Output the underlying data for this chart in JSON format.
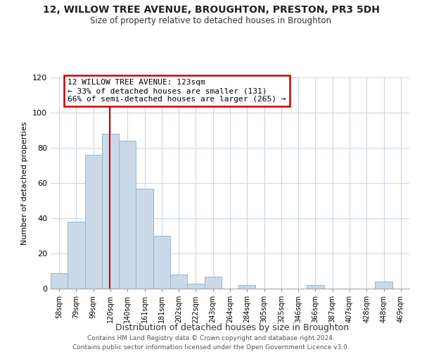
{
  "title": "12, WILLOW TREE AVENUE, BROUGHTON, PRESTON, PR3 5DH",
  "subtitle": "Size of property relative to detached houses in Broughton",
  "xlabel": "Distribution of detached houses by size in Broughton",
  "ylabel": "Number of detached properties",
  "bar_labels": [
    "58sqm",
    "79sqm",
    "99sqm",
    "120sqm",
    "140sqm",
    "161sqm",
    "181sqm",
    "202sqm",
    "222sqm",
    "243sqm",
    "264sqm",
    "284sqm",
    "305sqm",
    "325sqm",
    "346sqm",
    "366sqm",
    "387sqm",
    "407sqm",
    "428sqm",
    "448sqm",
    "469sqm"
  ],
  "bar_values": [
    9,
    38,
    76,
    88,
    84,
    57,
    30,
    8,
    3,
    7,
    0,
    2,
    0,
    0,
    0,
    2,
    0,
    0,
    0,
    4,
    0
  ],
  "bar_color": "#cad9e8",
  "bar_edge_color": "#9ab8d0",
  "vline_color": "#cc0000",
  "ylim": [
    0,
    120
  ],
  "yticks": [
    0,
    20,
    40,
    60,
    80,
    100,
    120
  ],
  "annotation_text": "12 WILLOW TREE AVENUE: 123sqm\n← 33% of detached houses are smaller (131)\n66% of semi-detached houses are larger (265) →",
  "annotation_box_color": "#ffffff",
  "annotation_box_edge": "#cc0000",
  "footer_line1": "Contains HM Land Registry data © Crown copyright and database right 2024.",
  "footer_line2": "Contains public sector information licensed under the Open Government Licence v3.0.",
  "background_color": "#ffffff",
  "grid_color": "#ccd8e4"
}
